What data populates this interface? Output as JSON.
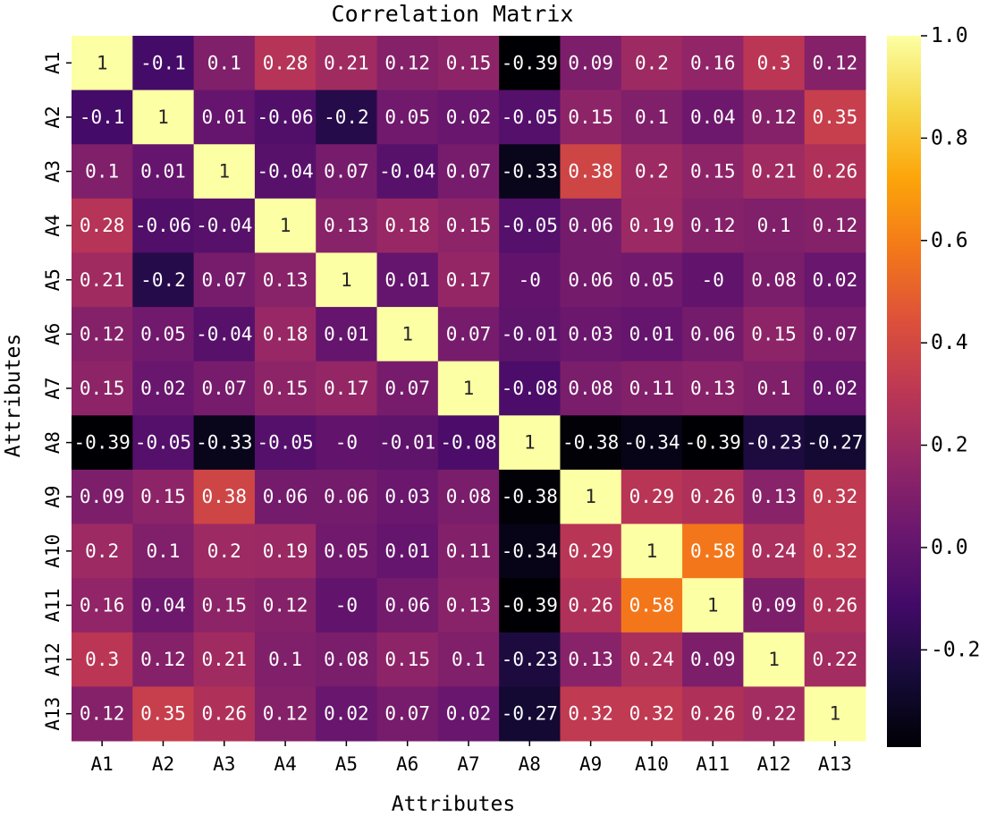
{
  "chart_data": {
    "type": "heatmap",
    "title": "Correlation Matrix",
    "xlabel": "Attributes",
    "ylabel": "Attributes",
    "x_labels": [
      "A1",
      "A2",
      "A3",
      "A4",
      "A5",
      "A6",
      "A7",
      "A8",
      "A9",
      "A10",
      "A11",
      "A12",
      "A13"
    ],
    "y_labels": [
      "A1",
      "A2",
      "A3",
      "A4",
      "A5",
      "A6",
      "A7",
      "A8",
      "A9",
      "A10",
      "A11",
      "A12",
      "A13"
    ],
    "values": [
      [
        1,
        -0.1,
        0.1,
        0.28,
        0.21,
        0.12,
        0.15,
        -0.39,
        0.09,
        0.2,
        0.16,
        0.3,
        0.12
      ],
      [
        -0.1,
        1,
        0.01,
        -0.06,
        -0.2,
        0.05,
        0.02,
        -0.05,
        0.15,
        0.1,
        0.04,
        0.12,
        0.35
      ],
      [
        0.1,
        0.01,
        1,
        -0.04,
        0.07,
        -0.04,
        0.07,
        -0.33,
        0.38,
        0.2,
        0.15,
        0.21,
        0.26
      ],
      [
        0.28,
        -0.06,
        -0.04,
        1,
        0.13,
        0.18,
        0.15,
        -0.05,
        0.06,
        0.19,
        0.12,
        0.1,
        0.12
      ],
      [
        0.21,
        -0.2,
        0.07,
        0.13,
        1,
        0.01,
        0.17,
        "-0",
        0.06,
        0.05,
        "-0",
        0.08,
        0.02
      ],
      [
        0.12,
        0.05,
        -0.04,
        0.18,
        0.01,
        1,
        0.07,
        -0.01,
        0.03,
        0.01,
        0.06,
        0.15,
        0.07
      ],
      [
        0.15,
        0.02,
        0.07,
        0.15,
        0.17,
        0.07,
        1,
        -0.08,
        0.08,
        0.11,
        0.13,
        0.1,
        0.02
      ],
      [
        -0.39,
        -0.05,
        -0.33,
        -0.05,
        "-0",
        -0.01,
        -0.08,
        1,
        -0.38,
        -0.34,
        -0.39,
        -0.23,
        -0.27
      ],
      [
        0.09,
        0.15,
        0.38,
        0.06,
        0.06,
        0.03,
        0.08,
        -0.38,
        1,
        0.29,
        0.26,
        0.13,
        0.32
      ],
      [
        0.2,
        0.1,
        0.2,
        0.19,
        0.05,
        0.01,
        0.11,
        -0.34,
        0.29,
        1,
        0.58,
        0.24,
        0.32
      ],
      [
        0.16,
        0.04,
        0.15,
        0.12,
        "-0",
        0.06,
        0.13,
        -0.39,
        0.26,
        0.58,
        1,
        0.09,
        0.26
      ],
      [
        0.3,
        0.12,
        0.21,
        0.1,
        0.08,
        0.15,
        0.1,
        -0.23,
        0.13,
        0.24,
        0.09,
        1,
        0.22
      ],
      [
        0.12,
        0.35,
        0.26,
        0.12,
        0.02,
        0.07,
        0.02,
        -0.27,
        0.32,
        0.32,
        0.26,
        0.22,
        1
      ]
    ],
    "colormap": "inferno",
    "colorbar": {
      "vmin": -0.39,
      "vmax": 1.0,
      "ticks": [
        1.0,
        0.8,
        0.6,
        0.4,
        0.2,
        0.0,
        -0.2
      ],
      "tick_labels": [
        "1.0",
        "0.8",
        "0.6",
        "0.4",
        "0.2",
        "0.0",
        "-0.2"
      ]
    },
    "annotations": true,
    "legend": "colorbar-right"
  }
}
